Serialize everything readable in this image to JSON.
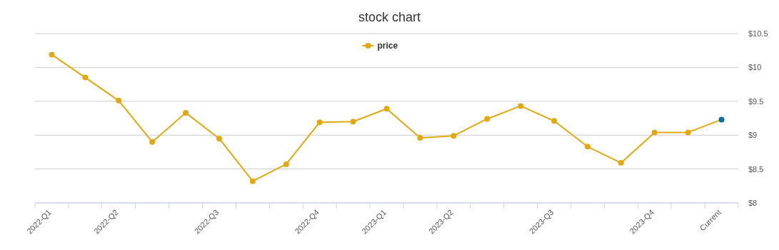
{
  "chart_data": {
    "type": "line",
    "title": "stock chart",
    "categories": [
      "2022-Q1",
      null,
      "2022-Q2",
      null,
      null,
      "2022-Q3",
      null,
      null,
      "2022-Q4",
      null,
      "2023-Q1",
      null,
      "2023-Q2",
      null,
      null,
      "2023-Q3",
      null,
      null,
      "2023-Q4",
      null,
      "Current"
    ],
    "series": [
      {
        "name": "price",
        "color": "#e0a914",
        "colors": [
          "#e0a914",
          "#e0a914",
          "#e0a914",
          "#e0a914",
          "#e0a914",
          "#e0a914",
          "#e0a914",
          "#e0a914",
          "#e0a914",
          "#e0a914",
          "#e0a914",
          "#e0a914",
          "#e0a914",
          "#e0a914",
          "#e0a914",
          "#e0a914",
          "#e0a914",
          "#e0a914",
          "#e0a914",
          "#e0a914",
          "#0a6fa8"
        ],
        "values": [
          10.19,
          9.85,
          9.51,
          8.9,
          9.33,
          8.95,
          8.32,
          8.57,
          9.19,
          9.2,
          9.39,
          8.96,
          8.99,
          9.24,
          9.43,
          9.21,
          8.83,
          8.59,
          9.04,
          9.04,
          9.23
        ]
      }
    ],
    "ylim": [
      8,
      10.5
    ],
    "yticks": [
      {
        "value": 8,
        "label": "$8"
      },
      {
        "value": 8.5,
        "label": "$8.5"
      },
      {
        "value": 9,
        "label": "$9"
      },
      {
        "value": 9.5,
        "label": "$9.5"
      },
      {
        "value": 10,
        "label": "$10"
      },
      {
        "value": 10.5,
        "label": "$10.5"
      }
    ],
    "grid": "y",
    "legend": "top",
    "marker": "circle",
    "line_style": "solid"
  }
}
